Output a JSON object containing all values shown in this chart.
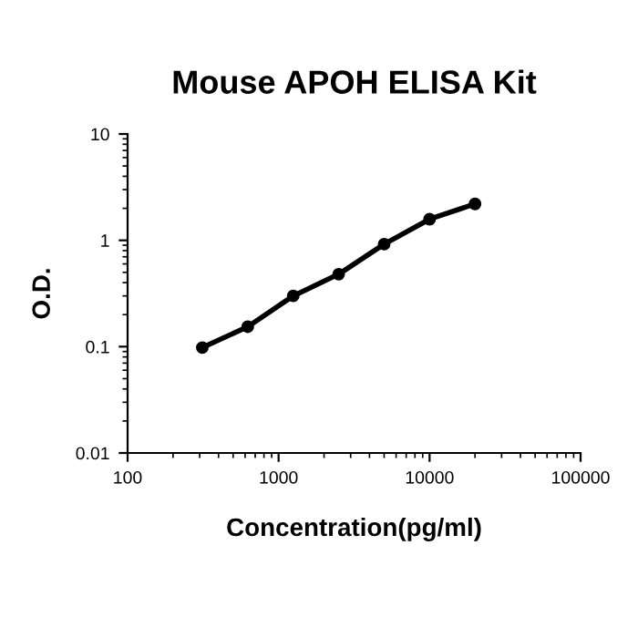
{
  "chart_data": {
    "type": "line",
    "title": "Mouse APOH ELISA Kit",
    "xlabel": "Concentration(pg/ml)",
    "ylabel": "O.D.",
    "log": "xy",
    "x": [
      312.5,
      625,
      1250,
      2500,
      5000,
      10000,
      20000
    ],
    "series": [
      {
        "color": "#000000",
        "values": [
          0.098,
          0.154,
          0.3,
          0.48,
          0.92,
          1.58,
          2.2
        ]
      }
    ],
    "marker": "circle",
    "line_style": "solid",
    "grid": false,
    "legend": false,
    "xlim": [
      100,
      100000
    ],
    "xticks": [
      100,
      1000,
      10000,
      100000
    ],
    "ylim": [
      0.01,
      10
    ],
    "yticks": [
      0.01,
      0.1,
      1,
      10
    ]
  }
}
